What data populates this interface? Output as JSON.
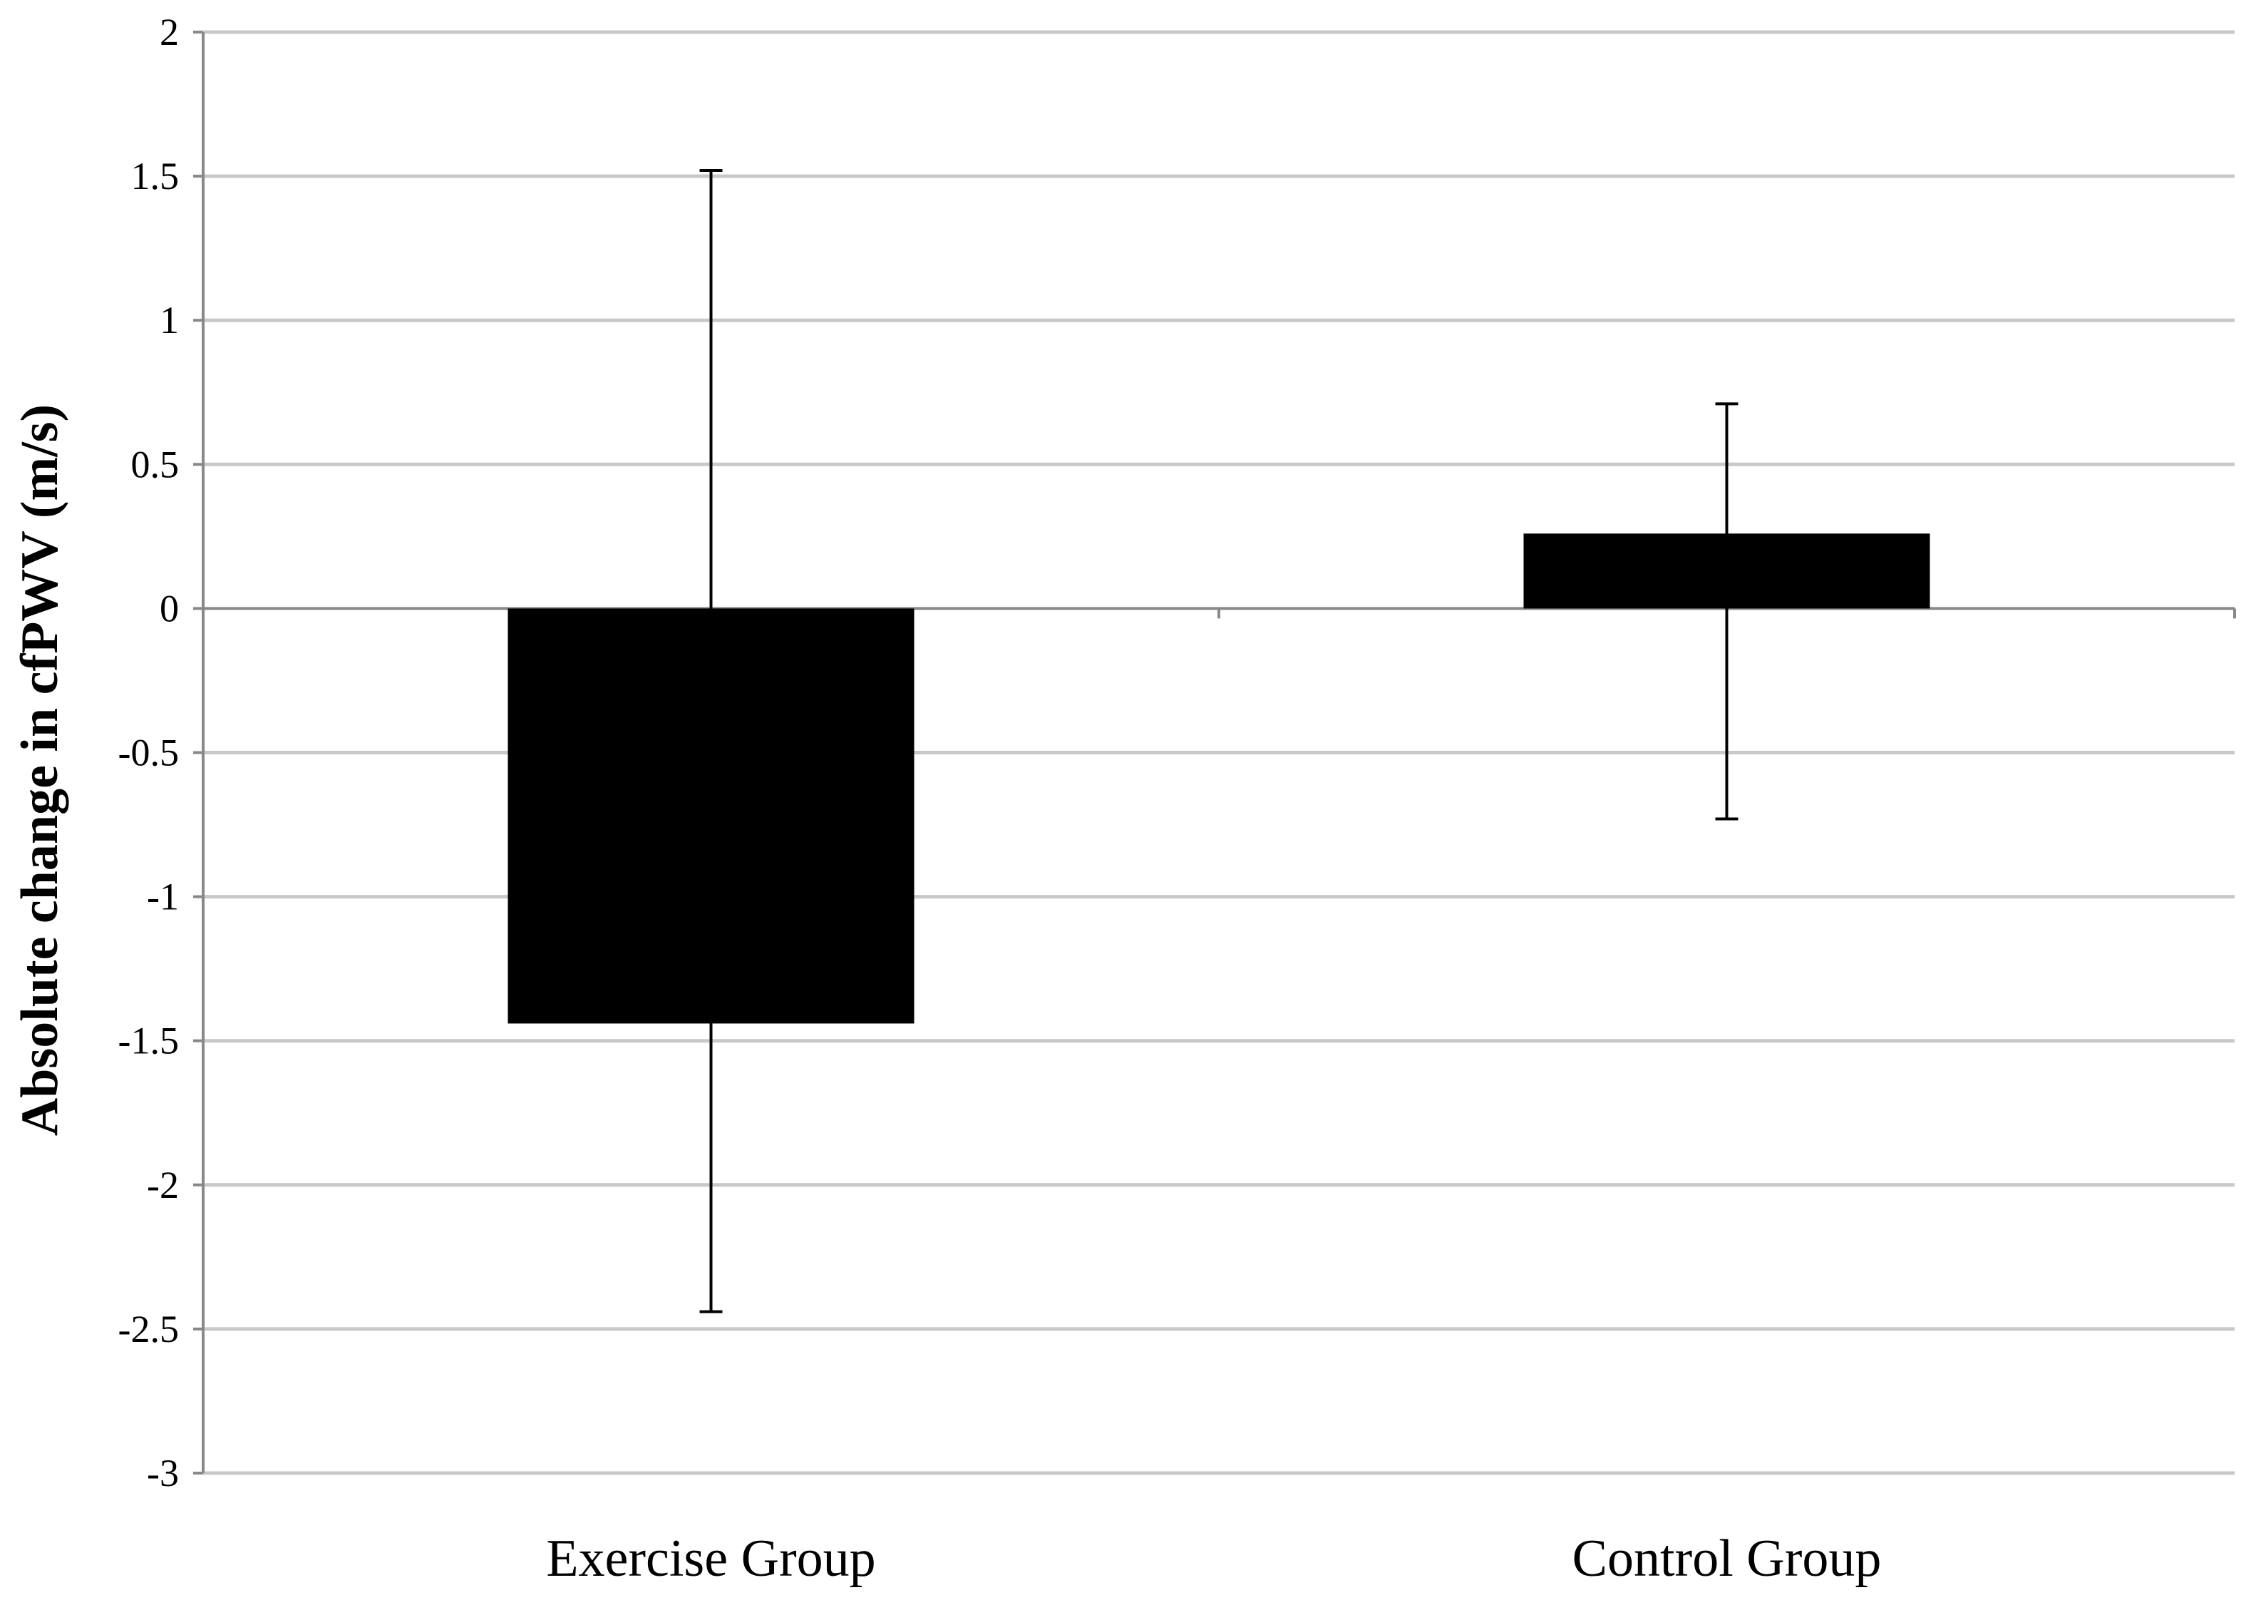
{
  "chart_data": {
    "type": "bar",
    "title": "",
    "xlabel": "",
    "ylabel": "Absolute change in cfPWV (m/s)",
    "ylim": [
      -3,
      2
    ],
    "ytick_step": 0.5,
    "y_tick_labels": [
      "2",
      "1.5",
      "1",
      "0.5",
      "0",
      "-0.5",
      "-1",
      "-1.5",
      "-2",
      "-2.5",
      "-3"
    ],
    "grid": true,
    "legend": "none",
    "categories": [
      "Exercise Group",
      "Control Group"
    ],
    "values": [
      -1.44,
      0.26
    ],
    "error_bars": [
      {
        "lower": -2.44,
        "upper": 1.52
      },
      {
        "lower": -0.73,
        "upper": 0.71
      }
    ],
    "bar_color": "#000000",
    "grid_color": "#c8c8c8"
  }
}
